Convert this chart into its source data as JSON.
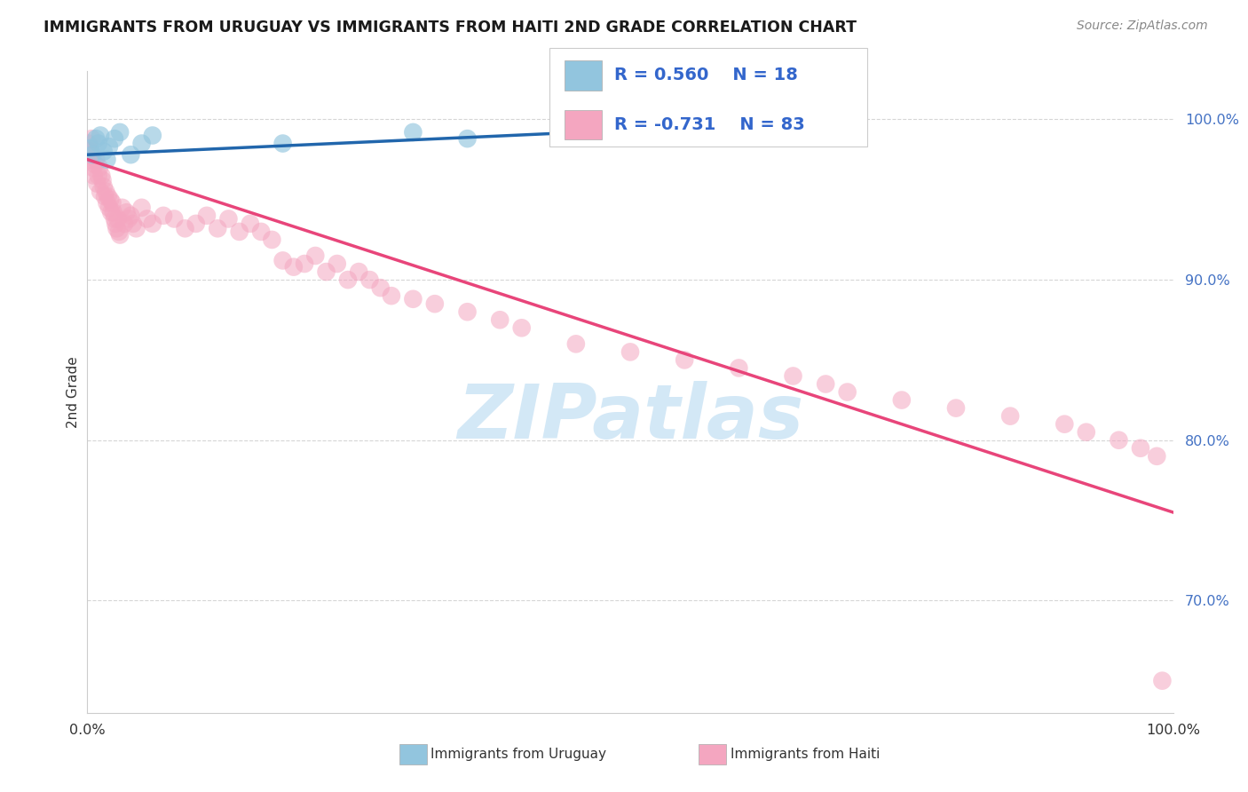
{
  "title": "IMMIGRANTS FROM URUGUAY VS IMMIGRANTS FROM HAITI 2ND GRADE CORRELATION CHART",
  "source": "Source: ZipAtlas.com",
  "ylabel": "2nd Grade",
  "legend_blue_r": "R = 0.560",
  "legend_blue_n": "N = 18",
  "legend_pink_r": "R = -0.731",
  "legend_pink_n": "N = 83",
  "legend_blue_label": "Immigrants from Uruguay",
  "legend_pink_label": "Immigrants from Haiti",
  "blue_color": "#92c5de",
  "pink_color": "#f4a6c0",
  "blue_line_color": "#2166ac",
  "pink_line_color": "#e8457a",
  "r_n_color": "#3366cc",
  "watermark_color": "#cce4f5",
  "xlim": [
    0.0,
    100.0
  ],
  "ylim": [
    63.0,
    103.0
  ],
  "yticks": [
    70.0,
    80.0,
    90.0,
    100.0
  ],
  "ytick_labels": [
    "70.0%",
    "80.0%",
    "90.0%",
    "100.0%"
  ],
  "blue_line_x0": 0.0,
  "blue_line_y0": 97.8,
  "blue_line_x1": 65.0,
  "blue_line_y1": 99.8,
  "pink_line_x0": 0.0,
  "pink_line_y0": 97.5,
  "pink_line_x1": 100.0,
  "pink_line_y1": 75.5,
  "blue_scatter_x": [
    0.3,
    0.5,
    0.8,
    1.0,
    1.2,
    1.5,
    1.8,
    2.0,
    2.5,
    3.0,
    4.0,
    5.0,
    6.0,
    18.0,
    30.0,
    35.0,
    50.0,
    62.0
  ],
  "blue_scatter_y": [
    98.2,
    97.8,
    98.8,
    98.5,
    99.0,
    98.0,
    97.5,
    98.3,
    98.8,
    99.2,
    97.8,
    98.5,
    99.0,
    98.5,
    99.2,
    98.8,
    99.5,
    99.5
  ],
  "pink_scatter_x": [
    0.1,
    0.2,
    0.3,
    0.4,
    0.5,
    0.6,
    0.7,
    0.8,
    0.9,
    1.0,
    1.1,
    1.2,
    1.3,
    1.4,
    1.5,
    1.6,
    1.7,
    1.8,
    1.9,
    2.0,
    2.1,
    2.2,
    2.3,
    2.4,
    2.5,
    2.6,
    2.7,
    2.8,
    2.9,
    3.0,
    3.2,
    3.4,
    3.6,
    3.8,
    4.0,
    4.2,
    4.5,
    5.0,
    5.5,
    6.0,
    7.0,
    8.0,
    9.0,
    10.0,
    11.0,
    12.0,
    13.0,
    14.0,
    15.0,
    16.0,
    17.0,
    18.0,
    19.0,
    20.0,
    21.0,
    22.0,
    23.0,
    24.0,
    25.0,
    26.0,
    27.0,
    28.0,
    30.0,
    32.0,
    35.0,
    38.0,
    40.0,
    45.0,
    50.0,
    55.0,
    60.0,
    65.0,
    68.0,
    70.0,
    75.0,
    80.0,
    85.0,
    90.0,
    92.0,
    95.0,
    97.0,
    98.5,
    99.0
  ],
  "pink_scatter_y": [
    98.5,
    98.0,
    97.5,
    98.8,
    97.0,
    96.5,
    97.2,
    97.5,
    96.0,
    96.5,
    97.0,
    95.5,
    96.5,
    96.2,
    95.8,
    95.2,
    95.5,
    94.8,
    95.2,
    94.5,
    95.0,
    94.2,
    94.8,
    94.2,
    93.8,
    93.5,
    93.2,
    93.8,
    93.0,
    92.8,
    94.5,
    93.5,
    94.2,
    93.8,
    94.0,
    93.5,
    93.2,
    94.5,
    93.8,
    93.5,
    94.0,
    93.8,
    93.2,
    93.5,
    94.0,
    93.2,
    93.8,
    93.0,
    93.5,
    93.0,
    92.5,
    91.2,
    90.8,
    91.0,
    91.5,
    90.5,
    91.0,
    90.0,
    90.5,
    90.0,
    89.5,
    89.0,
    88.8,
    88.5,
    88.0,
    87.5,
    87.0,
    86.0,
    85.5,
    85.0,
    84.5,
    84.0,
    83.5,
    83.0,
    82.5,
    82.0,
    81.5,
    81.0,
    80.5,
    80.0,
    79.5,
    79.0,
    65.0
  ]
}
